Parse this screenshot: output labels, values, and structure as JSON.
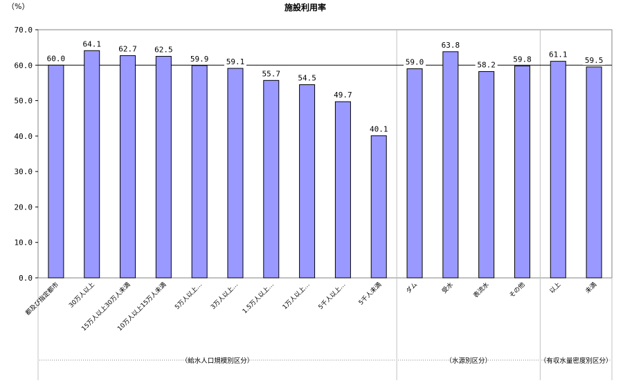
{
  "chart_data": {
    "type": "bar",
    "title": "施設利用率",
    "ylabel": "（%）",
    "ylim": [
      0,
      70
    ],
    "yticks": [
      "0.0",
      "10.0",
      "20.0",
      "30.0",
      "40.0",
      "50.0",
      "60.0",
      "70.0"
    ],
    "reference_line": 60,
    "categories": [
      "都及び指定都市",
      "30万人以上",
      "15万人以上30万人未満",
      "10万人以上15万人未満",
      "5万人以上…",
      "3万人以上…",
      "1.5万人以上…",
      "1万人以上…",
      "5千人以上…",
      "5千人未満",
      "ダム",
      "受水",
      "表流水",
      "その他",
      "以上",
      "未満"
    ],
    "values": [
      60.0,
      64.1,
      62.7,
      62.5,
      59.9,
      59.1,
      55.7,
      54.5,
      49.7,
      40.1,
      59.0,
      63.8,
      58.2,
      59.8,
      61.1,
      59.5
    ],
    "value_labels": [
      "60.0",
      "64.1",
      "62.7",
      "62.5",
      "59.9",
      "59.1",
      "55.7",
      "54.5",
      "49.7",
      "40.1",
      "59.0",
      "63.8",
      "58.2",
      "59.8",
      "61.1",
      "59.5"
    ],
    "groups": [
      {
        "label": "（給水人口規模別区分）",
        "start": 0,
        "end": 9
      },
      {
        "label": "（水源別区分）",
        "start": 10,
        "end": 13
      },
      {
        "label": "（有収水量密度別区分）",
        "start": 14,
        "end": 15
      }
    ],
    "bar_color": "#9999ff",
    "grid": false
  }
}
